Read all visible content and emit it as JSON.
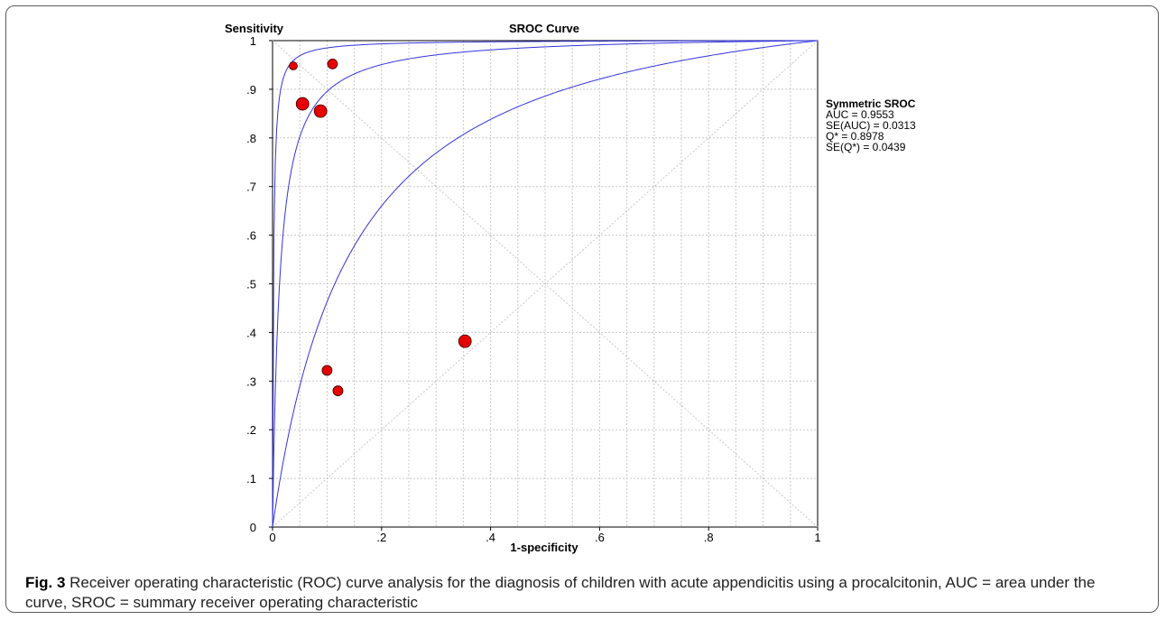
{
  "chart_data": {
    "type": "scatter",
    "title": "SROC Curve",
    "ylabel": "Sensitivity",
    "xlabel": "1-specificity",
    "xlim": [
      0,
      1
    ],
    "ylim": [
      0,
      1
    ],
    "grid": true,
    "x_ticks": [
      "0",
      ".2",
      ".4",
      ".6",
      ".8",
      "1"
    ],
    "y_ticks": [
      "0",
      ".1",
      ".2",
      ".3",
      ".4",
      ".5",
      ".6",
      ".7",
      ".8",
      ".9",
      "1"
    ],
    "points": [
      {
        "x": 0.038,
        "y": 0.948,
        "size": "small"
      },
      {
        "x": 0.11,
        "y": 0.952,
        "size": "medium"
      },
      {
        "x": 0.055,
        "y": 0.87,
        "size": "large"
      },
      {
        "x": 0.088,
        "y": 0.855,
        "size": "large"
      },
      {
        "x": 0.353,
        "y": 0.382,
        "size": "large"
      },
      {
        "x": 0.1,
        "y": 0.322,
        "size": "medium"
      },
      {
        "x": 0.12,
        "y": 0.28,
        "size": "medium"
      }
    ],
    "sroc_curves": [
      {
        "role": "upper-bound",
        "auc": 0.991
      },
      {
        "role": "estimate",
        "auc": 0.9553
      },
      {
        "role": "lower-bound",
        "auc": 0.8
      }
    ],
    "reference_lines": [
      "diagonal",
      "anti-diagonal"
    ],
    "colors": {
      "curve": "#3333dd",
      "point": "#e60000",
      "grid": "#c8c8c8"
    },
    "annotation": {
      "title": "Symmetric SROC",
      "lines": [
        "AUC = 0.9553",
        "SE(AUC) = 0.0313",
        "Q* = 0.8978",
        "SE(Q*) = 0.0439"
      ]
    }
  },
  "caption": {
    "label": "Fig. 3",
    "text": " Receiver operating characteristic (ROC) curve analysis for the diagnosis of children with acute appendicitis using a procalcitonin, AUC = area under the curve, SROC = summary receiver operating characteristic"
  }
}
